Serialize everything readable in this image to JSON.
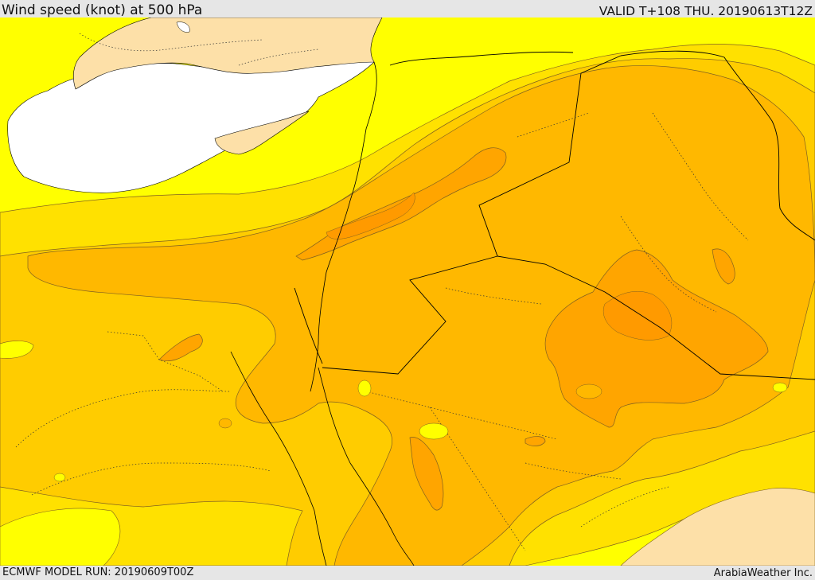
{
  "header": {
    "title": "Wind speed (knot) at 500 hPa",
    "valid_time": "VALID T+108 THU. 20190613T12Z"
  },
  "footer": {
    "model_run": "ECMWF MODEL RUN: 20190609T00Z",
    "credit": "ArabiaWeather Inc."
  },
  "colors": {
    "sea": "#ffffff",
    "land_low_wind": "#fde0a8",
    "band_1": "#ffff00",
    "band_2": "#ffe100",
    "band_3": "#ffcc00",
    "band_4": "#ffb800",
    "band_5": "#ffa500",
    "band_6": "#ff9a00",
    "contour_line": "#806020",
    "border_line": "#000000"
  },
  "map": {
    "parameter": "Wind speed",
    "unit": "knot",
    "level": "500 hPa"
  }
}
